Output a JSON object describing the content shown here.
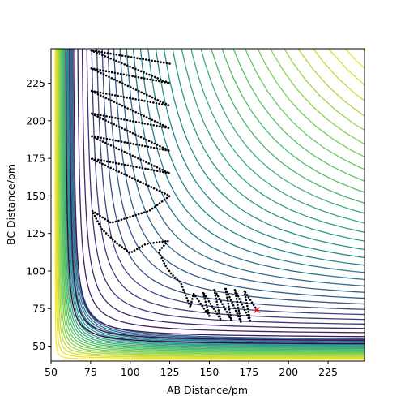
{
  "chart_data": {
    "type": "contour",
    "x_label": "AB Distance/pm",
    "y_label": "BC Distance/pm",
    "xlim": [
      50,
      248
    ],
    "ylim": [
      40,
      248
    ],
    "xticks": [
      50,
      75,
      100,
      125,
      150,
      175,
      200,
      225
    ],
    "yticks": [
      50,
      75,
      100,
      125,
      150,
      175,
      200,
      225
    ],
    "trajectory": {
      "color": "#000000",
      "x": [
        180,
        172,
        176,
        166,
        170,
        160,
        164,
        153,
        157,
        146,
        150,
        140,
        138,
        132,
        126,
        122,
        118,
        124,
        110,
        100,
        92,
        82,
        76,
        88,
        112,
        125,
        75,
        125,
        75,
        125,
        75,
        125,
        75,
        125,
        75,
        125,
        75,
        125
      ],
      "y": [
        74,
        87,
        66,
        88,
        66,
        89,
        67,
        88,
        68,
        86,
        70,
        85,
        76,
        92,
        98,
        104,
        113,
        120,
        118,
        112,
        118,
        128,
        140,
        132,
        140,
        150,
        175,
        165,
        190,
        180,
        205,
        195,
        220,
        210,
        235,
        225,
        247,
        238
      ]
    },
    "start": {
      "x": 180,
      "y": 74,
      "color": "#ff0000"
    }
  }
}
